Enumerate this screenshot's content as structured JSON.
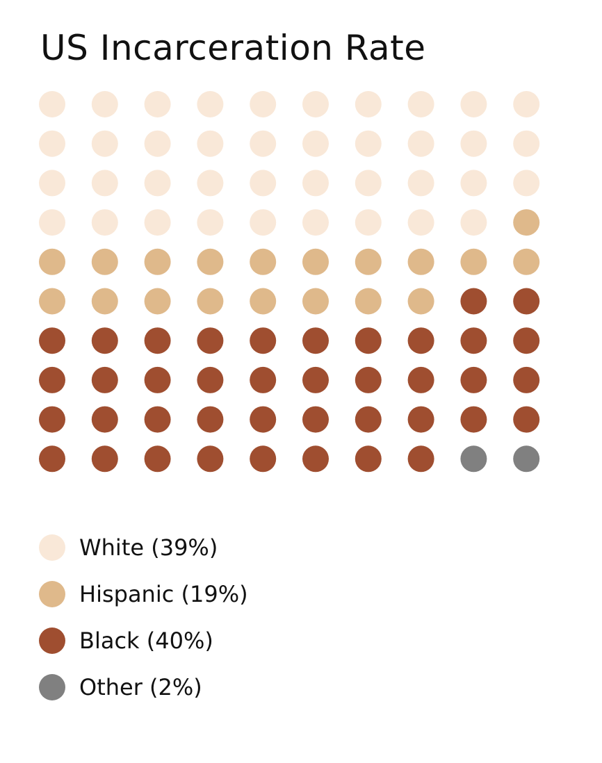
{
  "chart_data": {
    "type": "waffle",
    "title": "US Incarceration Rate",
    "total_units": 100,
    "rows": 10,
    "columns": 10,
    "legend_position": "bottom-left",
    "series": [
      {
        "name": "White",
        "value": 39,
        "label": "White (39%)",
        "color": "#f9e8d8"
      },
      {
        "name": "Hispanic",
        "value": 19,
        "label": "Hispanic (19%)",
        "color": "#dfb98b"
      },
      {
        "name": "Black",
        "value": 40,
        "label": "Black (40%)",
        "color": "#9f4e30"
      },
      {
        "name": "Other",
        "value": 2,
        "label": "Other (2%)",
        "color": "#808080"
      }
    ]
  }
}
